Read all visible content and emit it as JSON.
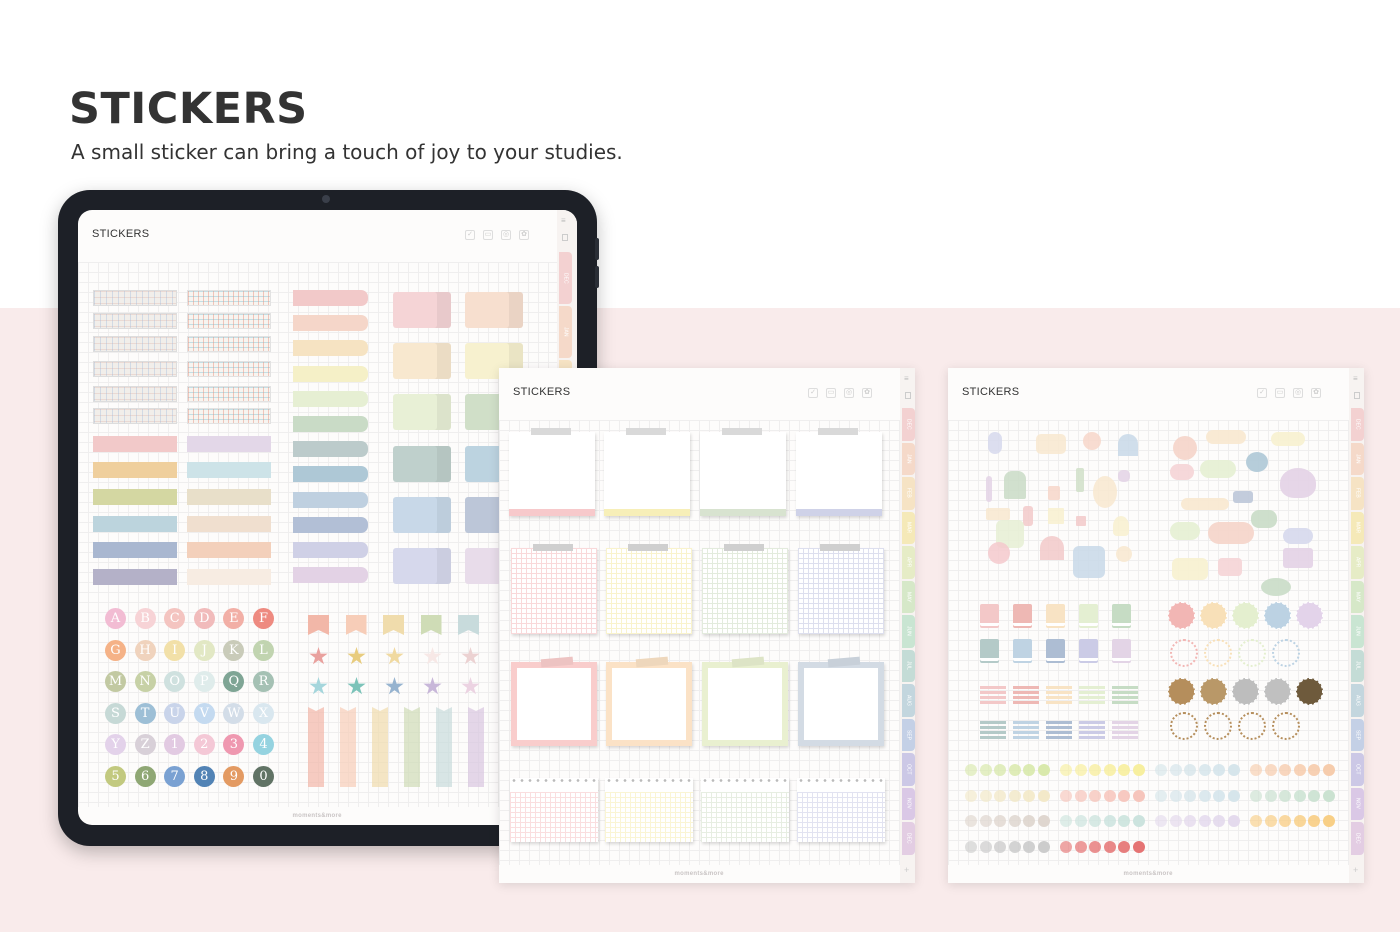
{
  "header": {
    "title": "STICKERS",
    "subtitle": "A small sticker can bring a touch of joy to your studies."
  },
  "pages": [
    {
      "title": "STICKERS",
      "footer": "moments&more"
    },
    {
      "title": "STICKERS",
      "footer": "moments&more"
    },
    {
      "title": "STICKERS",
      "footer": "moments&more"
    }
  ],
  "header_icons": [
    "calendar-check-icon",
    "briefcase-icon",
    "globe-icon",
    "settings-icon"
  ],
  "side_icons": [
    "menu-icon",
    "bookmark-icon"
  ],
  "add_tab": "+",
  "tabs": [
    {
      "label": "DEC",
      "color": "#f3d1d1"
    },
    {
      "label": "JAN",
      "color": "#f5d9c9"
    },
    {
      "label": "FEB",
      "color": "#f6e3c4"
    },
    {
      "label": "MAR",
      "color": "#f5e9b8"
    },
    {
      "label": "APR",
      "color": "#e6ecc6"
    },
    {
      "label": "MAY",
      "color": "#d6e8c8"
    },
    {
      "label": "JUN",
      "color": "#c9e5d2"
    },
    {
      "label": "JUL",
      "color": "#c4dcd6"
    },
    {
      "label": "AUG",
      "color": "#c3d6de"
    },
    {
      "label": "SEP",
      "color": "#c4d0e6"
    },
    {
      "label": "OCT",
      "color": "#ccc8e6"
    },
    {
      "label": "NOV",
      "color": "#dac8e6"
    },
    {
      "label": "DEC",
      "color": "#e3cde3"
    }
  ],
  "alphabet": [
    {
      "c": "A",
      "color": "#f2bcd3"
    },
    {
      "c": "B",
      "color": "#f7d3d6"
    },
    {
      "c": "C",
      "color": "#f4c4c0"
    },
    {
      "c": "D",
      "color": "#f1bbbb"
    },
    {
      "c": "E",
      "color": "#f2afa6"
    },
    {
      "c": "F",
      "color": "#ee8a80"
    },
    {
      "c": "G",
      "color": "#f5b287"
    },
    {
      "c": "H",
      "color": "#f0d3bd"
    },
    {
      "c": "I",
      "color": "#f2e0a8"
    },
    {
      "c": "J",
      "color": "#e2e8c4"
    },
    {
      "c": "K",
      "color": "#c9cbb9"
    },
    {
      "c": "L",
      "color": "#c1d4b0"
    },
    {
      "c": "M",
      "color": "#c2c9a2"
    },
    {
      "c": "N",
      "color": "#c7d1a6"
    },
    {
      "c": "O",
      "color": "#cfe1df"
    },
    {
      "c": "P",
      "color": "#dfeceb"
    },
    {
      "c": "Q",
      "color": "#7fa595"
    },
    {
      "c": "R",
      "color": "#a5c1b4"
    },
    {
      "c": "S",
      "color": "#c6d9d6"
    },
    {
      "c": "T",
      "color": "#9dbfd6"
    },
    {
      "c": "U",
      "color": "#c9d4ea"
    },
    {
      "c": "V",
      "color": "#c4daf0"
    },
    {
      "c": "W",
      "color": "#d3dde8"
    },
    {
      "c": "X",
      "color": "#d9e7ef"
    },
    {
      "c": "Y",
      "color": "#e3d2ea"
    },
    {
      "c": "Z",
      "color": "#d8d0d8"
    },
    {
      "c": "1",
      "color": "#e2cae2"
    },
    {
      "c": "2",
      "color": "#f4c8d6"
    },
    {
      "c": "3",
      "color": "#ef98b0"
    },
    {
      "c": "4",
      "color": "#95d3e0"
    },
    {
      "c": "5",
      "color": "#c2c97f"
    },
    {
      "c": "6",
      "color": "#8fa774"
    },
    {
      "c": "7",
      "color": "#7aa1d2"
    },
    {
      "c": "8",
      "color": "#5283b5"
    },
    {
      "c": "9",
      "color": "#e39a62"
    },
    {
      "c": "0",
      "color": "#617365"
    }
  ],
  "palette": {
    "tapes_a": [
      "#f2c9c9",
      "#efcf9d",
      "#d4d7a2",
      "#bcd4dd",
      "#a9b7d0",
      "#b4b1c8"
    ],
    "tapes_b": [
      "#e3d7e8",
      "#cde3e8",
      "#e8dfc9",
      "#f0dfcf",
      "#f3d0bb",
      "#f7ece2"
    ],
    "tabs": [
      "#f2c9c9",
      "#f5d6c9",
      "#f6e3c2",
      "#f5f0c7",
      "#e6efd3",
      "#c9dbc6",
      "#bccbcb",
      "#aec8d6",
      "#bfd0e0",
      "#b2bfd6",
      "#cfd0e6",
      "#e3d2e5"
    ],
    "notes": [
      "#f5d4d6",
      "#f7dfcf",
      "#f8e8cf",
      "#f7f1cf",
      "#e8f0d6",
      "#d0dfc8",
      "#bfd0cc",
      "#bcd3e0",
      "#c8d8e8",
      "#bcc6d8",
      "#d6d8ec",
      "#e8dcea"
    ],
    "flags": [
      "#f2b7a8",
      "#f7cdb8",
      "#f0dcac",
      "#cfdcb6",
      "#c8dbdc",
      "#d8c6e0"
    ],
    "stars1": [
      "#e9a19e",
      "#e8cc7e",
      "#f0d9a0",
      "#f7e8e6",
      "#ecd2d2"
    ],
    "stars2": [
      "#a5d6dc",
      "#7cc3b9",
      "#96b3cf",
      "#c8b7d9",
      "#ecd3e2"
    ],
    "paper_edge": [
      "#f7c9cb",
      "#f7efb8",
      "#d8e3d0",
      "#cfd2e8"
    ],
    "frames": [
      "#f9cdcc",
      "#fbe2c6",
      "#e9f0d0",
      "#d3dbe4"
    ],
    "books": [
      "#f3c8c8",
      "#eeb8b4",
      "#f8e3c4",
      "#e4efd2",
      "#c6dcc4",
      "#b4cac8",
      "#bfd3e3",
      "#adbdd3",
      "#cbcbe6",
      "#e3d4e6"
    ],
    "seals1": [
      "#f2b6b4",
      "#f8e0b8",
      "#e4efcf",
      "#bcd2e3",
      "#e3d3ea"
    ],
    "seals2": [
      "#b58e5c",
      "#b99868",
      "#bdbdbd",
      "#c0c0c0",
      "#6e5a3c"
    ],
    "emoji": [
      "#d7e8a8",
      "#f7ee9a",
      "#d4e4ea",
      "#f6c9a8",
      "#f2e8c6",
      "#f6c2b8",
      "#c8e0cf",
      "#d8d8e0",
      "#ddd4cc",
      "#c9e2dc",
      "#e3d8ec",
      "#f8cc80",
      "#c9c9c9",
      "#e46c6c"
    ]
  }
}
